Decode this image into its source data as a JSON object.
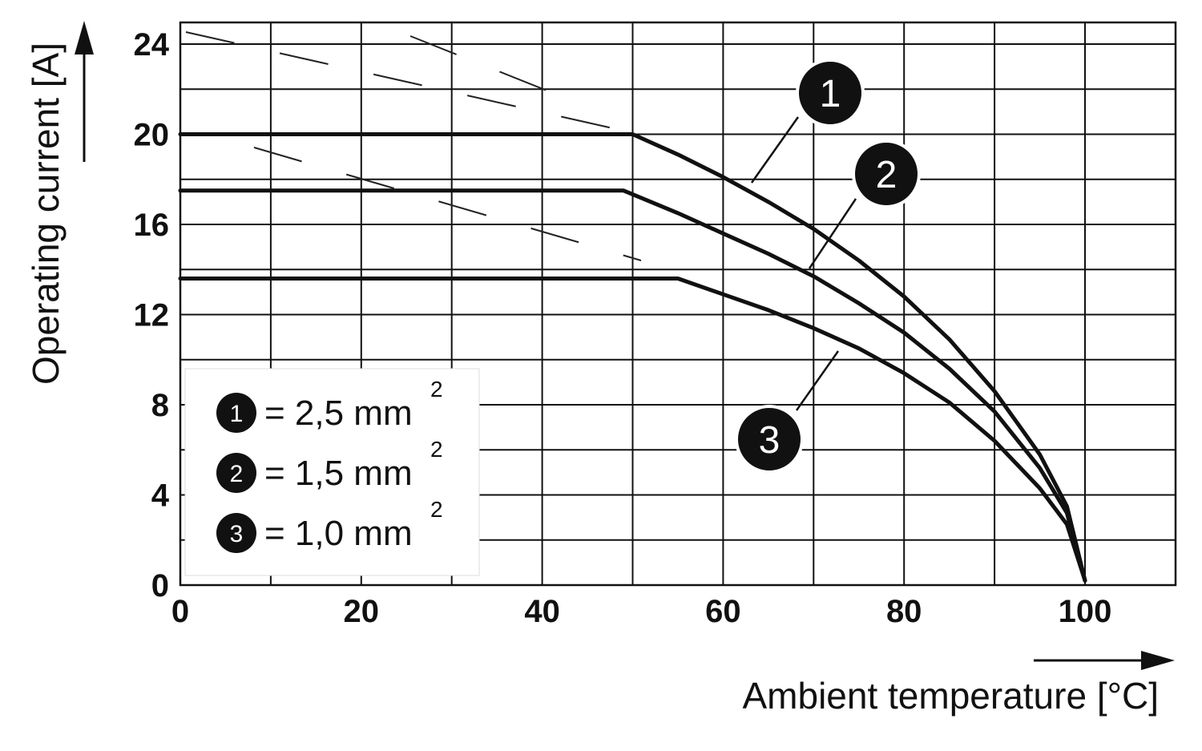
{
  "chart_data": {
    "type": "line",
    "xlabel": "Ambient temperature [°C]",
    "ylabel": "Operating current [A]",
    "xlim": [
      0,
      110
    ],
    "ylim": [
      0,
      24
    ],
    "x_ticks": [
      "0",
      "20",
      "40",
      "60",
      "80",
      "100"
    ],
    "y_ticks": [
      "0",
      "4",
      "8",
      "12",
      "16",
      "20",
      "24"
    ],
    "grid": true,
    "legend": {
      "placement": "bottom-left",
      "entries": [
        {
          "marker": "1",
          "text": "= 2,5 mm",
          "sup": "2"
        },
        {
          "marker": "2",
          "text": "= 1,5 mm",
          "sup": "2"
        },
        {
          "marker": "3",
          "text": "= 1,0 mm",
          "sup": "2"
        }
      ]
    },
    "series": [
      {
        "marker": "1",
        "x": [
          0,
          50,
          55,
          60,
          65,
          70,
          75,
          80,
          85,
          90,
          95,
          98,
          100
        ],
        "y": [
          20,
          20,
          19.1,
          18.1,
          17,
          15.8,
          14.4,
          12.8,
          10.9,
          8.6,
          5.8,
          3.5,
          0.2
        ]
      },
      {
        "marker": "2",
        "x": [
          0,
          49,
          55,
          60,
          65,
          70,
          75,
          80,
          85,
          90,
          95,
          98,
          100
        ],
        "y": [
          17.5,
          17.5,
          16.5,
          15.6,
          14.7,
          13.7,
          12.5,
          11.2,
          9.6,
          7.7,
          5.2,
          3.2,
          0.2
        ]
      },
      {
        "marker": "3",
        "x": [
          0,
          55,
          60,
          65,
          70,
          75,
          80,
          85,
          90,
          95,
          98,
          100
        ],
        "y": [
          13.6,
          13.6,
          12.9,
          12.2,
          11.4,
          10.5,
          9.4,
          8.1,
          6.4,
          4.3,
          2.7,
          0.2
        ]
      }
    ]
  }
}
